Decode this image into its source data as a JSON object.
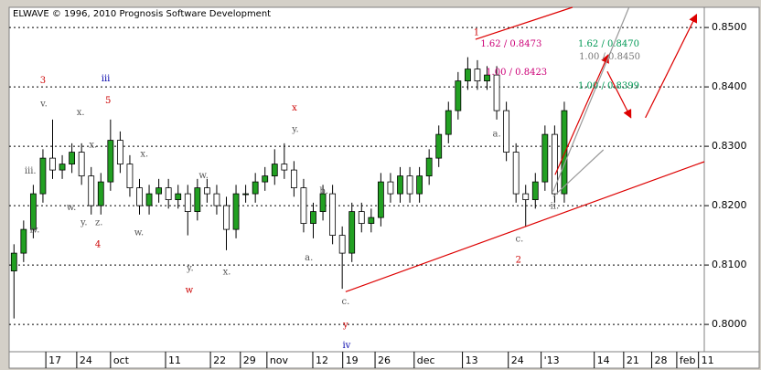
{
  "chart_data": {
    "type": "candlestick",
    "title": "ELWAVE © 1996, 2010 Prognosis Software Development",
    "xlim": [
      0,
      144
    ],
    "ylim": [
      0.7954,
      0.8534
    ],
    "yticks": [
      {
        "value": 0.8,
        "label": "0.8000"
      },
      {
        "value": 0.81,
        "label": "0.8100"
      },
      {
        "value": 0.82,
        "label": "0.8200"
      },
      {
        "value": 0.83,
        "label": "0.8300"
      },
      {
        "value": 0.84,
        "label": "0.8400"
      },
      {
        "value": 0.85,
        "label": "0.8500"
      }
    ],
    "xticks": [
      {
        "value": 7.6,
        "label": "17"
      },
      {
        "value": 14,
        "label": "24"
      },
      {
        "value": 21,
        "label": "oct"
      },
      {
        "value": 32.4,
        "label": "11"
      },
      {
        "value": 41.7,
        "label": "22"
      },
      {
        "value": 47.9,
        "label": "29"
      },
      {
        "value": 53.4,
        "label": "nov"
      },
      {
        "value": 62.9,
        "label": "12"
      },
      {
        "value": 69.1,
        "label": "19"
      },
      {
        "value": 75.8,
        "label": "26"
      },
      {
        "value": 83.9,
        "label": "dec"
      },
      {
        "value": 93.9,
        "label": "13"
      },
      {
        "value": 103.4,
        "label": "24"
      },
      {
        "value": 110.2,
        "label": "'13"
      },
      {
        "value": 121.2,
        "label": "14"
      },
      {
        "value": 127.3,
        "label": "21"
      },
      {
        "value": 133.1,
        "label": "28"
      },
      {
        "value": 138.3,
        "label": "feb"
      },
      {
        "value": 142.8,
        "label": "11"
      }
    ],
    "grid": true,
    "up_color": "#22a022",
    "down_color": "#ffffff",
    "x": [
      1,
      3,
      5,
      7,
      9,
      11,
      13,
      15,
      17,
      19,
      21,
      23,
      25,
      27,
      29,
      31,
      33,
      35,
      37,
      39,
      41,
      43,
      45,
      47,
      49,
      51,
      53,
      55,
      57,
      59,
      61,
      63,
      65,
      67,
      69,
      71,
      73,
      75,
      77,
      79,
      81,
      83,
      85,
      87,
      89,
      91,
      93,
      95,
      97,
      99,
      101,
      103,
      105,
      107,
      109,
      111,
      113,
      115
    ],
    "open": [
      0.809,
      0.812,
      0.816,
      0.822,
      0.828,
      0.826,
      0.827,
      0.829,
      0.825,
      0.82,
      0.824,
      0.831,
      0.827,
      0.823,
      0.82,
      0.822,
      0.823,
      0.821,
      0.822,
      0.819,
      0.823,
      0.822,
      0.82,
      0.816,
      0.822,
      0.822,
      0.824,
      0.825,
      0.827,
      0.826,
      0.823,
      0.817,
      0.819,
      0.822,
      0.815,
      0.812,
      0.819,
      0.817,
      0.818,
      0.824,
      0.822,
      0.825,
      0.822,
      0.825,
      0.828,
      0.832,
      0.836,
      0.841,
      0.843,
      0.841,
      0.842,
      0.836,
      0.829,
      0.822,
      0.821,
      0.824,
      0.832,
      0.822
    ],
    "high": [
      0.8135,
      0.8175,
      0.8235,
      0.8295,
      0.8345,
      0.8285,
      0.8305,
      0.8305,
      0.8265,
      0.8255,
      0.8345,
      0.8325,
      0.8285,
      0.8245,
      0.8235,
      0.8245,
      0.8245,
      0.8235,
      0.8235,
      0.8245,
      0.8245,
      0.8235,
      0.8215,
      0.8235,
      0.8235,
      0.8255,
      0.8265,
      0.8295,
      0.8305,
      0.8275,
      0.8245,
      0.8205,
      0.8235,
      0.8235,
      0.8165,
      0.8205,
      0.8205,
      0.8195,
      0.8255,
      0.8255,
      0.8265,
      0.8265,
      0.8265,
      0.8295,
      0.8335,
      0.8375,
      0.8425,
      0.845,
      0.8445,
      0.8435,
      0.8435,
      0.8375,
      0.8305,
      0.8235,
      0.8255,
      0.8335,
      0.8335,
      0.8375
    ],
    "low": [
      0.801,
      0.8105,
      0.8145,
      0.8205,
      0.8245,
      0.8245,
      0.8255,
      0.8235,
      0.8185,
      0.8185,
      0.8225,
      0.8255,
      0.8215,
      0.8185,
      0.8185,
      0.8205,
      0.8195,
      0.8195,
      0.815,
      0.8175,
      0.8205,
      0.8185,
      0.8125,
      0.8145,
      0.8205,
      0.8205,
      0.8225,
      0.8235,
      0.8245,
      0.8215,
      0.8155,
      0.8145,
      0.8175,
      0.8135,
      0.806,
      0.8105,
      0.8155,
      0.8155,
      0.8165,
      0.8205,
      0.8205,
      0.8205,
      0.8205,
      0.8235,
      0.8265,
      0.8305,
      0.8345,
      0.8395,
      0.8395,
      0.8395,
      0.8345,
      0.8275,
      0.8205,
      0.8165,
      0.8195,
      0.8225,
      0.8205,
      0.8205
    ],
    "close": [
      0.812,
      0.816,
      0.822,
      0.828,
      0.826,
      0.827,
      0.829,
      0.825,
      0.82,
      0.824,
      0.831,
      0.827,
      0.823,
      0.82,
      0.822,
      0.823,
      0.821,
      0.822,
      0.819,
      0.823,
      0.822,
      0.82,
      0.816,
      0.822,
      0.822,
      0.824,
      0.825,
      0.827,
      0.826,
      0.823,
      0.817,
      0.819,
      0.822,
      0.815,
      0.812,
      0.819,
      0.817,
      0.818,
      0.824,
      0.822,
      0.825,
      0.822,
      0.825,
      0.828,
      0.832,
      0.836,
      0.841,
      0.843,
      0.841,
      0.842,
      0.836,
      0.829,
      0.822,
      0.821,
      0.824,
      0.832,
      0.822,
      0.836
    ],
    "annotations": [
      {
        "text": "3",
        "x": 7,
        "y": 0.841,
        "color": "#cc0000"
      },
      {
        "text": "iii",
        "x": 20,
        "y": 0.8413,
        "color": "#0000aa"
      },
      {
        "text": "5",
        "x": 20.5,
        "y": 0.8376,
        "color": "#cc0000"
      },
      {
        "text": "v.",
        "x": 7.2,
        "y": 0.8371,
        "color": "#555555"
      },
      {
        "text": "x.",
        "x": 14.8,
        "y": 0.8356,
        "color": "#555555"
      },
      {
        "text": "x.",
        "x": 17.4,
        "y": 0.8302,
        "color": "#555555"
      },
      {
        "text": "iii.",
        "x": 4.4,
        "y": 0.8258,
        "color": "#555555"
      },
      {
        "text": "iv.",
        "x": 5.3,
        "y": 0.8159,
        "color": "#555555"
      },
      {
        "text": "w.",
        "x": 12.9,
        "y": 0.8196,
        "color": "#555555"
      },
      {
        "text": "y.",
        "x": 15.5,
        "y": 0.8171,
        "color": "#555555"
      },
      {
        "text": "z.",
        "x": 18.6,
        "y": 0.8171,
        "color": "#555555"
      },
      {
        "text": "4",
        "x": 18.4,
        "y": 0.8134,
        "color": "#cc0000"
      },
      {
        "text": "x.",
        "x": 28,
        "y": 0.8286,
        "color": "#555555"
      },
      {
        "text": "w.",
        "x": 26.9,
        "y": 0.8154,
        "color": "#555555"
      },
      {
        "text": "w.",
        "x": 40.3,
        "y": 0.825,
        "color": "#555555"
      },
      {
        "text": "y.",
        "x": 37.5,
        "y": 0.8094,
        "color": "#555555"
      },
      {
        "text": "w",
        "x": 37.3,
        "y": 0.8057,
        "color": "#cc0000"
      },
      {
        "text": "x.",
        "x": 45.1,
        "y": 0.8088,
        "color": "#555555"
      },
      {
        "text": "x",
        "x": 59.1,
        "y": 0.8364,
        "color": "#cc0000"
      },
      {
        "text": "y.",
        "x": 59.3,
        "y": 0.8328,
        "color": "#555555"
      },
      {
        "text": "b.",
        "x": 65.2,
        "y": 0.8224,
        "color": "#555555"
      },
      {
        "text": "a.",
        "x": 62.1,
        "y": 0.8112,
        "color": "#555555"
      },
      {
        "text": "c.",
        "x": 69.7,
        "y": 0.8038,
        "color": "#555555"
      },
      {
        "text": "y",
        "x": 69.7,
        "y": 0.7999,
        "color": "#cc0000"
      },
      {
        "text": "iv",
        "x": 69.9,
        "y": 0.7964,
        "color": "#0000aa"
      },
      {
        "text": "1",
        "x": 96.8,
        "y": 0.8491,
        "color": "#cc0000"
      },
      {
        "text": "a.",
        "x": 101,
        "y": 0.832,
        "color": "#555555"
      },
      {
        "text": "c.",
        "x": 105.7,
        "y": 0.8143,
        "color": "#555555"
      },
      {
        "text": "2",
        "x": 105.5,
        "y": 0.8108,
        "color": "#cc0000"
      },
      {
        "text": "ii.",
        "x": 113,
        "y": 0.8199,
        "color": "#555555"
      },
      {
        "text": "1.62 / 0.8473",
        "x": 104,
        "y": 0.8472,
        "color": "#cc0077"
      },
      {
        "text": "1.00 / 0.8423",
        "x": 105.1,
        "y": 0.8424,
        "color": "#cc0077"
      },
      {
        "text": "1.62 / 0.8470",
        "x": 124.2,
        "y": 0.8472,
        "color": "#009955"
      },
      {
        "text": "1.00 / 0.8450",
        "x": 124.4,
        "y": 0.845,
        "color": "#777777"
      },
      {
        "text": "1.00 / 0.8399",
        "x": 124.2,
        "y": 0.8401,
        "color": "#009955"
      }
    ],
    "lines": [
      {
        "x": [
          69.7,
          144
        ],
        "y": [
          0.8055,
          0.8274
        ],
        "color": "#dd0000"
      },
      {
        "x": [
          96.6,
          116.7
        ],
        "y": [
          0.848,
          0.8534
        ],
        "color": "#dd0000"
      },
      {
        "x": [
          113.1,
          124.1
        ],
        "y": [
          0.8252,
          0.8454
        ],
        "color": "#dd0000",
        "arrow": true
      },
      {
        "x": [
          123.9,
          128.8
        ],
        "y": [
          0.8426,
          0.8348
        ],
        "color": "#dd0000",
        "arrow": true
      },
      {
        "x": [
          131.8,
          142.4
        ],
        "y": [
          0.8348,
          0.8522
        ],
        "color": "#dd0000",
        "arrow": true
      },
      {
        "x": [
          112.7,
          128.4
        ],
        "y": [
          0.8224,
          0.8534
        ],
        "color": "#999999"
      },
      {
        "x": [
          112.7,
          123.1
        ],
        "y": [
          0.8215,
          0.8294
        ],
        "color": "#999999"
      }
    ]
  }
}
